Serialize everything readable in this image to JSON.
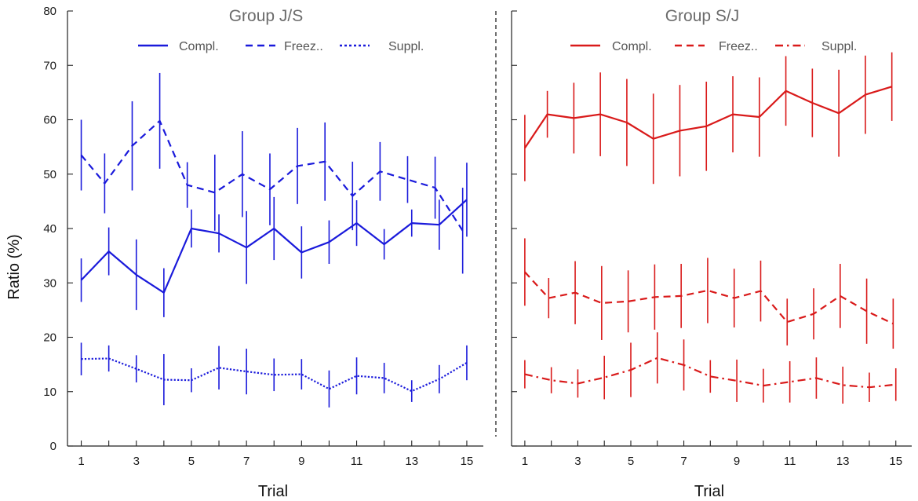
{
  "figure": {
    "ylabel": "Ratio (%)",
    "xlabel": "Trial"
  },
  "chart_data": [
    {
      "type": "line",
      "title": "Group J/S",
      "xlabel": "Trial",
      "ylabel": "Ratio (%)",
      "ylim": [
        0,
        80
      ],
      "xlim": [
        0.5,
        15.6
      ],
      "x_ticks": [
        1,
        3,
        5,
        7,
        9,
        11,
        13,
        15
      ],
      "y_ticks": [
        0,
        10,
        20,
        30,
        40,
        50,
        60,
        70,
        80
      ],
      "x": [
        1,
        2,
        3,
        4,
        5,
        6,
        7,
        8,
        9,
        10,
        11,
        12,
        13,
        14,
        15
      ],
      "color": "#1a1adb",
      "series": [
        {
          "name": "Compl.",
          "style": "solid",
          "values": [
            30.5,
            35.8,
            31.5,
            28.2,
            40.0,
            39.1,
            36.5,
            40.0,
            35.6,
            37.5,
            41.0,
            37.1,
            41.0,
            40.7,
            45.3
          ],
          "errors": [
            4.0,
            4.4,
            6.5,
            4.5,
            3.5,
            3.5,
            6.7,
            5.8,
            4.8,
            4.0,
            4.2,
            2.8,
            2.5,
            4.6,
            6.8
          ]
        },
        {
          "name": "Freez..",
          "style": "dashed",
          "values": [
            53.5,
            48.3,
            55.2,
            59.8,
            48.0,
            46.6,
            50.0,
            47.2,
            51.5,
            52.3,
            46.0,
            50.5,
            49.0,
            47.5,
            39.6
          ],
          "errors": [
            6.5,
            5.5,
            8.2,
            8.8,
            4.2,
            7.0,
            7.9,
            6.6,
            7.0,
            7.2,
            6.3,
            5.4,
            4.3,
            5.7,
            7.9
          ],
          "error_x_offset": -0.15
        },
        {
          "name": "Suppl.",
          "style": "dotted",
          "values": [
            16.0,
            16.1,
            14.2,
            12.2,
            12.1,
            14.4,
            13.7,
            13.1,
            13.2,
            10.5,
            12.9,
            12.5,
            10.1,
            12.3,
            15.3
          ],
          "errors": [
            3.0,
            2.4,
            2.5,
            4.7,
            2.2,
            4.0,
            4.2,
            3.0,
            2.8,
            3.4,
            3.4,
            2.8,
            2.0,
            2.6,
            3.2
          ]
        }
      ]
    },
    {
      "type": "line",
      "title": "Group S/J",
      "xlabel": "Trial",
      "ylabel": "",
      "ylim": [
        0,
        80
      ],
      "xlim": [
        0.5,
        15.6
      ],
      "x_ticks": [
        1,
        3,
        5,
        7,
        9,
        11,
        13,
        15
      ],
      "y_ticks": [
        0,
        10,
        20,
        30,
        40,
        50,
        60,
        70,
        80
      ],
      "x": [
        1,
        2,
        3,
        4,
        5,
        6,
        7,
        8,
        9,
        10,
        11,
        12,
        13,
        14,
        15
      ],
      "color": "#d91a1a",
      "series": [
        {
          "name": "Compl.",
          "style": "solid",
          "values": [
            54.8,
            61.0,
            60.3,
            61.0,
            59.5,
            56.5,
            58.0,
            58.8,
            61.0,
            60.5,
            65.3,
            63.1,
            61.2,
            64.6,
            66.1
          ],
          "errors": [
            6.1,
            4.3,
            6.5,
            7.7,
            8.0,
            8.3,
            8.4,
            8.2,
            7.0,
            7.3,
            6.4,
            6.3,
            8.0,
            7.2,
            6.3
          ],
          "error_x_offset": -0.15
        },
        {
          "name": "Freez..",
          "style": "dashed",
          "values": [
            32.0,
            27.2,
            28.2,
            26.3,
            26.6,
            27.4,
            27.6,
            28.6,
            27.2,
            28.5,
            22.8,
            24.3,
            27.6,
            24.8,
            22.5
          ],
          "errors": [
            6.2,
            3.7,
            5.8,
            6.8,
            5.7,
            6.0,
            5.9,
            6.0,
            5.4,
            5.6,
            4.3,
            4.7,
            5.9,
            6.0,
            4.6
          ],
          "error_x_offset": -0.1
        },
        {
          "name": "Suppl.",
          "style": "dashdot",
          "values": [
            13.2,
            12.1,
            11.5,
            12.6,
            14.0,
            16.2,
            14.9,
            12.8,
            12.0,
            11.1,
            11.8,
            12.5,
            11.2,
            10.8,
            11.3
          ],
          "errors": [
            2.6,
            2.4,
            2.6,
            4.0,
            5.0,
            4.7,
            4.7,
            3.0,
            3.9,
            3.1,
            3.8,
            3.8,
            3.4,
            2.7,
            3.0
          ]
        }
      ]
    }
  ]
}
